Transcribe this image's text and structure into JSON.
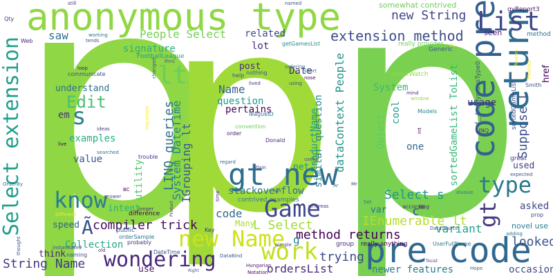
{
  "words": [
    {
      "text": "p",
      "color": "#8fd744"
    },
    {
      "text": "p",
      "color": "#a0da39"
    },
    {
      "text": "p",
      "color": "#7ad151"
    },
    {
      "text": "anonymous type",
      "color": "#90d743"
    },
    {
      "text": "pre code",
      "color": "#31688e"
    },
    {
      "text": "code pre",
      "color": "#35608d"
    },
    {
      "text": "return",
      "color": "#2f6c8e"
    },
    {
      "text": "List",
      "color": "#3e4a89"
    },
    {
      "text": "gt new",
      "color": "#2e6e8e"
    },
    {
      "text": "Select extension",
      "color": "#1f9e89"
    },
    {
      "text": "new Name",
      "color": "#cde11d"
    },
    {
      "text": "Game",
      "color": "#3f4889"
    },
    {
      "text": "wondering",
      "color": "#482878"
    },
    {
      "text": "work",
      "color": "#c2df23"
    },
    {
      "text": "know",
      "color": "#287d8e"
    },
    {
      "text": "type",
      "color": "#2a788e"
    },
    {
      "text": "gt",
      "color": "#453781"
    },
    {
      "text": "s",
      "color": "#26828e"
    },
    {
      "text": "lt",
      "color": "#6ccd5a"
    },
    {
      "text": "Edit",
      "color": "#46c06f"
    },
    {
      "text": "extension method",
      "color": "#3e4c8a"
    },
    {
      "text": "compiler trick",
      "color": "#460b5e"
    },
    {
      "text": "method returns",
      "color": "#440154"
    },
    {
      "text": "String Name",
      "color": "#443a83"
    },
    {
      "text": "Suppose L",
      "color": "#3b528b"
    },
    {
      "text": "IEnumerable lt",
      "color": "#b5de2b"
    },
    {
      "text": "new String",
      "color": "#414487"
    },
    {
      "text": "Select s",
      "color": "#1f968b"
    },
    {
      "text": "LINQ queries",
      "color": "#2c718e"
    },
    {
      "text": "System DateTime",
      "color": "#25848e"
    },
    {
      "text": "IGrouping lt",
      "color": "#365c8d"
    },
    {
      "text": "trying",
      "color": "#3e4989"
    },
    {
      "text": "looked",
      "color": "#3a538b"
    },
    {
      "text": "People Select",
      "color": "#75d054"
    },
    {
      "text": "dataContext People",
      "color": "#1f948c"
    },
    {
      "text": "similar question",
      "color": "#23888e"
    },
    {
      "text": "L Select",
      "color": "#a2da37"
    },
    {
      "text": "stackoverflow",
      "color": "#2c728e"
    },
    {
      "text": "ordersList",
      "color": "#482475"
    },
    {
      "text": "Collection",
      "color": "#22a785"
    },
    {
      "text": "examples",
      "color": "#27ad81"
    },
    {
      "text": "Object",
      "color": "#5ec962"
    },
    {
      "text": "Name",
      "color": "#33638d"
    },
    {
      "text": "question",
      "color": "#1f9a8a"
    },
    {
      "text": "pertains",
      "color": "#440154"
    },
    {
      "text": "signature",
      "color": "#29af7f"
    },
    {
      "text": "understand",
      "color": "#2d708e"
    },
    {
      "text": "saw",
      "color": "#2c728e"
    },
    {
      "text": "Date",
      "color": "#472d7b"
    },
    {
      "text": "post",
      "color": "#472c7a"
    },
    {
      "text": "related",
      "color": "#404688"
    },
    {
      "text": "lot",
      "color": "#482878"
    },
    {
      "text": "code",
      "color": "#31678e"
    },
    {
      "text": "Many",
      "color": "#a8db34"
    },
    {
      "text": "variant",
      "color": "#1f9e89"
    },
    {
      "text": "asked",
      "color": "#3f4889"
    },
    {
      "text": "occasion",
      "color": "#3e4a89"
    },
    {
      "text": "newer features",
      "color": "#297b8e"
    },
    {
      "text": "sortedGameList ToList",
      "color": "#35b779"
    },
    {
      "text": "System",
      "color": "#3aba76"
    },
    {
      "text": "ProductName",
      "color": "#1fa088"
    },
    {
      "text": "utility",
      "color": "#54c568"
    },
    {
      "text": "intent",
      "color": "#2ab07f"
    },
    {
      "text": "speed",
      "color": "#33638d"
    },
    {
      "text": "value",
      "color": "#38588c"
    },
    {
      "text": "think",
      "color": "#482475"
    },
    {
      "text": "use",
      "color": "#481a6c"
    },
    {
      "text": "em",
      "color": "#453581"
    },
    {
      "text": "usage",
      "color": "#46337e"
    },
    {
      "text": "one",
      "color": "#306a8e"
    },
    {
      "text": "cool",
      "color": "#1e9b8a"
    },
    {
      "text": "var",
      "color": "#2a778e"
    },
    {
      "text": "net",
      "color": "#20928c"
    },
    {
      "text": "used",
      "color": "#424086"
    },
    {
      "text": "c",
      "color": "#39558c"
    },
    {
      "text": "g",
      "color": "#24878e"
    },
    {
      "text": "Ã",
      "color": "#3b518b"
    },
    {
      "text": "somewhat contrived",
      "color": "#6ece58"
    },
    {
      "text": "seen",
      "color": "#48186a"
    },
    {
      "text": "gvReport3",
      "color": "#48186a"
    },
    {
      "text": "really provides",
      "color": "#6ece58"
    },
    {
      "text": "getGamesList",
      "color": "#228d8d"
    },
    {
      "text": "Generic",
      "color": "#39568c"
    },
    {
      "text": "f__AnonymousType0",
      "color": "#3b528b"
    },
    {
      "text": "QuickWatch",
      "color": "#95d840"
    },
    {
      "text": "sortedGameList",
      "color": "#3d4d8a"
    },
    {
      "text": "LINQ",
      "color": "#482878"
    },
    {
      "text": "Models",
      "color": "#25848e"
    },
    {
      "text": "novel use",
      "color": "#287c8e"
    },
    {
      "text": "prop",
      "color": "#3f4788"
    },
    {
      "text": "href",
      "color": "#440154"
    },
    {
      "text": "Smith",
      "color": "#3b528b"
    },
    {
      "text": "Thanks",
      "color": "#fde725"
    },
    {
      "text": "method",
      "color": "#2d708e"
    },
    {
      "text": "FootballLeague",
      "color": "#1f9e89"
    },
    {
      "text": "leagueID",
      "color": "#2c728e"
    },
    {
      "text": "convention",
      "color": "#6ece58"
    },
    {
      "text": "order",
      "color": "#48186a"
    },
    {
      "text": "Donald",
      "color": "#472d7b"
    },
    {
      "text": "help",
      "color": "#3e4a89"
    },
    {
      "text": "nothing",
      "color": "#3b528b"
    },
    {
      "text": "really anything",
      "color": "#440154"
    },
    {
      "text": "UserFullName",
      "color": "#2a788e"
    },
    {
      "text": "ToList",
      "color": "#46337e"
    },
    {
      "text": "DataSource",
      "color": "#3f4788"
    },
    {
      "text": "group",
      "color": "#482878"
    },
    {
      "text": "Hungarian",
      "color": "#481a6c"
    },
    {
      "text": "Notation",
      "color": "#440154"
    },
    {
      "text": "DataBind",
      "color": "#3b528b"
    },
    {
      "text": "pimple",
      "color": "#3e4989"
    },
    {
      "text": "DateTime",
      "color": "#3b528b"
    },
    {
      "text": "orderSample",
      "color": "#2c728e"
    },
    {
      "text": "probably",
      "color": "#46337e"
    },
    {
      "text": "naming",
      "color": "#3b528b"
    },
    {
      "text": "public",
      "color": "#2d708e"
    },
    {
      "text": "instantiated",
      "color": "#3b528b"
    },
    {
      "text": "difference",
      "color": "#440154"
    },
    {
      "text": "contrived examples",
      "color": "#2a788e"
    },
    {
      "text": "according",
      "color": "#46337e"
    },
    {
      "text": "expected",
      "color": "#3b528b"
    },
    {
      "text": "adding",
      "color": "#2c728e"
    },
    {
      "text": "great",
      "color": "#46337e"
    },
    {
      "text": "elusive",
      "color": "#2c728e"
    },
    {
      "text": "int",
      "color": "#440154"
    },
    {
      "text": "window",
      "color": "#95d840"
    },
    {
      "text": "Web",
      "color": "#482878"
    },
    {
      "text": "Qty",
      "color": "#46337e"
    },
    {
      "text": "OrderBy",
      "color": "#2d708e"
    },
    {
      "text": "live",
      "color": "#440154"
    },
    {
      "text": "ideas",
      "color": "#46337e"
    },
    {
      "text": "communicate",
      "color": "#3e4a89"
    },
    {
      "text": "loop",
      "color": "#48186a"
    },
    {
      "text": "searched",
      "color": "#2c728e"
    },
    {
      "text": "trouble",
      "color": "#453581"
    },
    {
      "text": "Key",
      "color": "#472d7b"
    },
    {
      "text": "answer",
      "color": "#3e4a89"
    },
    {
      "text": "longer",
      "color": "#46337e"
    },
    {
      "text": "thought",
      "color": "#3b528b"
    },
    {
      "text": "Different",
      "color": "#fde725"
    },
    {
      "text": "Product",
      "color": "#482878"
    },
    {
      "text": "useful",
      "color": "#3b528b"
    },
    {
      "text": "whereas",
      "color": "#46337e"
    },
    {
      "text": "Set",
      "color": "#2d708e"
    },
    {
      "text": "fill",
      "color": "#440154"
    },
    {
      "text": "working",
      "color": "#2c728e"
    },
    {
      "text": "tends",
      "color": "#3b528b"
    },
    {
      "text": "still",
      "color": "#46337e"
    },
    {
      "text": "named",
      "color": "#3b528b"
    },
    {
      "text": "ordering",
      "color": "#2c728e"
    },
    {
      "text": "lived",
      "color": "#46337e"
    },
    {
      "text": "short",
      "color": "#2d708e"
    },
    {
      "text": "nose",
      "color": "#440154"
    },
    {
      "text": "changed",
      "color": "#3b528b"
    },
    {
      "text": "important",
      "color": "#fde725"
    },
    {
      "text": "Plain",
      "color": "#3e4a89"
    },
    {
      "text": "Ian",
      "color": "#3b528b"
    },
    {
      "text": "Ar",
      "color": "#2d708e"
    },
    {
      "text": "time",
      "color": "#46337e"
    },
    {
      "text": "Rowan",
      "color": "#fde725"
    },
    {
      "text": "thru",
      "color": "#3b528b"
    },
    {
      "text": "regard",
      "color": "#2c728e"
    },
    {
      "text": "mind",
      "color": "#46337e"
    },
    {
      "text": "using",
      "color": "#3e4a89"
    },
    {
      "text": "ac",
      "color": "#fde725"
    },
    {
      "text": "Mr",
      "color": "#3b528b"
    },
    {
      "text": "BC",
      "color": "#440154"
    },
    {
      "text": "old",
      "color": "#46337e"
    },
    {
      "text": "Right",
      "color": "#3b528b"
    },
    {
      "text": "Hope",
      "color": "#2d708e"
    }
  ]
}
